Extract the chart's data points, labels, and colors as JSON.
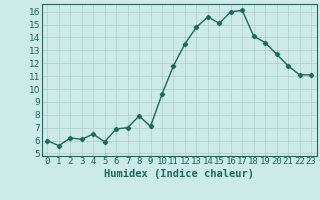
{
  "x": [
    0,
    1,
    2,
    3,
    4,
    5,
    6,
    7,
    8,
    9,
    10,
    11,
    12,
    13,
    14,
    15,
    16,
    17,
    18,
    19,
    20,
    21,
    22,
    23
  ],
  "y": [
    6.0,
    5.6,
    6.2,
    6.1,
    6.5,
    5.9,
    6.9,
    7.0,
    7.9,
    7.1,
    9.6,
    11.8,
    13.5,
    14.8,
    15.6,
    15.1,
    16.0,
    16.1,
    14.1,
    13.6,
    12.7,
    11.8,
    11.1,
    11.1
  ],
  "line_color": "#1a6b5a",
  "marker": "D",
  "marker_size": 2.2,
  "bg_color": "#cceae7",
  "grid_major_color": "#b0ccc9",
  "grid_minor_color": "#daecea",
  "xlabel": "Humidex (Indice chaleur)",
  "xlim": [
    -0.5,
    23.5
  ],
  "ylim": [
    4.8,
    16.6
  ],
  "yticks": [
    5,
    6,
    7,
    8,
    9,
    10,
    11,
    12,
    13,
    14,
    15,
    16
  ],
  "xticks": [
    0,
    1,
    2,
    3,
    4,
    5,
    6,
    7,
    8,
    9,
    10,
    11,
    12,
    13,
    14,
    15,
    16,
    17,
    18,
    19,
    20,
    21,
    22,
    23
  ],
  "xtick_labels": [
    "0",
    "1",
    "2",
    "3",
    "4",
    "5",
    "6",
    "7",
    "8",
    "9",
    "10",
    "11",
    "12",
    "13",
    "14",
    "15",
    "16",
    "17",
    "18",
    "19",
    "20",
    "21",
    "22",
    "23"
  ],
  "tick_fontsize": 6.5,
  "xlabel_fontsize": 7.5,
  "tick_color": "#1a6b5a",
  "spine_color": "#1a6b5a"
}
